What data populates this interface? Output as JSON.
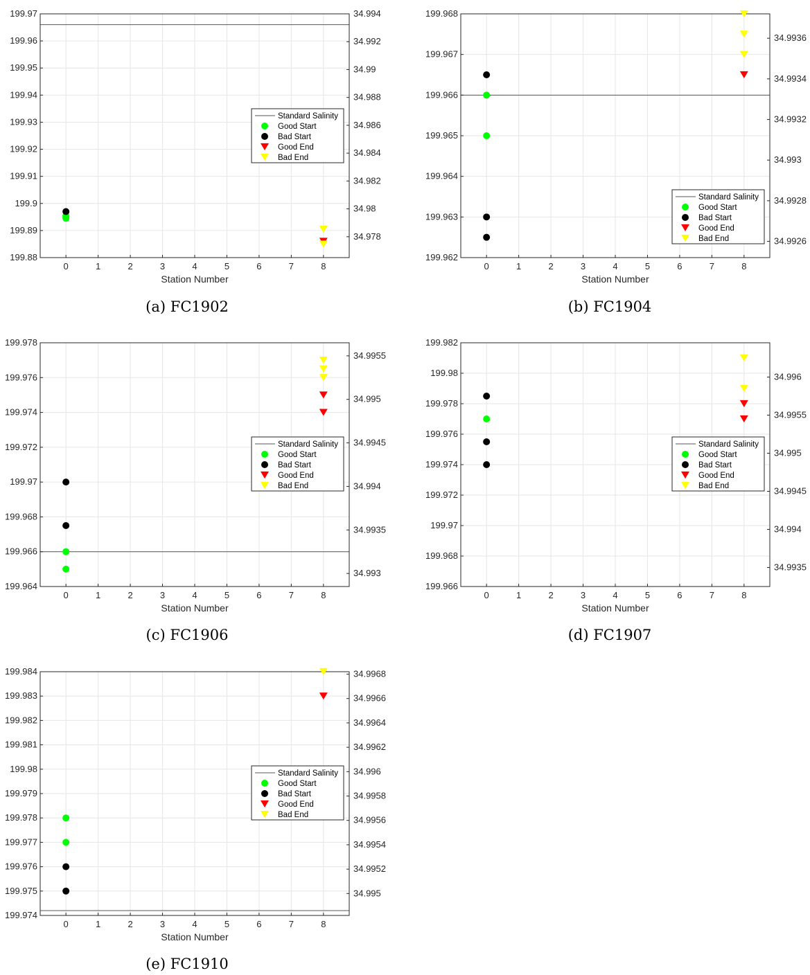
{
  "chart_data": [
    {
      "type": "scatter",
      "caption": "(a) FC1902",
      "xlabel": "Station Number",
      "xlim": [
        -0.8,
        8.8
      ],
      "xticks": [
        "0",
        "1",
        "2",
        "3",
        "4",
        "5",
        "6",
        "7",
        "8"
      ],
      "ylim": [
        199.88,
        199.97
      ],
      "yticks": [
        "199.88",
        "199.89",
        "199.9",
        "199.91",
        "199.92",
        "199.93",
        "199.94",
        "199.95",
        "199.96",
        "199.97"
      ],
      "y2lim": [
        34.9765,
        34.994
      ],
      "y2ticks": [
        "34.978",
        "34.98",
        "34.982",
        "34.984",
        "34.986",
        "34.988",
        "34.99",
        "34.992",
        "34.994"
      ],
      "grid": true,
      "legend_position": "right-middle",
      "standard_salinity": 199.966,
      "series": [
        {
          "name": "Good Start",
          "color": "#00ff00",
          "marker": "circle",
          "x": [
            0,
            0,
            0
          ],
          "y": [
            199.8945,
            199.895,
            199.8955
          ]
        },
        {
          "name": "Bad Start",
          "color": "#000000",
          "marker": "circle",
          "x": [
            0
          ],
          "y": [
            199.897
          ]
        },
        {
          "name": "Good End",
          "color": "#ff0000",
          "marker": "triangle-down",
          "x": [
            8
          ],
          "y": [
            199.886
          ]
        },
        {
          "name": "Bad End",
          "color": "#ffff00",
          "marker": "triangle-down",
          "x": [
            8,
            8
          ],
          "y": [
            199.8905,
            199.885
          ]
        }
      ],
      "legend": {
        "standard": "Standard Salinity",
        "good_start": "Good Start",
        "bad_start": "Bad Start",
        "good_end": "Good End",
        "bad_end": "Bad End"
      }
    },
    {
      "type": "scatter",
      "caption": "(b) FC1904",
      "xlabel": "Station Number",
      "xlim": [
        -0.8,
        8.8
      ],
      "xticks": [
        "0",
        "1",
        "2",
        "3",
        "4",
        "5",
        "6",
        "7",
        "8"
      ],
      "ylim": [
        199.962,
        199.968
      ],
      "yticks": [
        "199.962",
        "199.963",
        "199.964",
        "199.965",
        "199.966",
        "199.967",
        "199.968"
      ],
      "y2lim": [
        34.99252,
        34.99372
      ],
      "y2ticks": [
        "34.9926",
        "34.9928",
        "34.993",
        "34.9932",
        "34.9934",
        "34.9936"
      ],
      "grid": true,
      "legend_position": "bottom-right",
      "standard_salinity": 199.966,
      "series": [
        {
          "name": "Good Start",
          "color": "#00ff00",
          "marker": "circle",
          "x": [
            0,
            0
          ],
          "y": [
            199.966,
            199.965
          ]
        },
        {
          "name": "Bad Start",
          "color": "#000000",
          "marker": "circle",
          "x": [
            0,
            0,
            0
          ],
          "y": [
            199.9665,
            199.963,
            199.9625
          ]
        },
        {
          "name": "Good End",
          "color": "#ff0000",
          "marker": "triangle-down",
          "x": [
            8
          ],
          "y": [
            199.9665
          ]
        },
        {
          "name": "Bad End",
          "color": "#ffff00",
          "marker": "triangle-down",
          "x": [
            8,
            8,
            8
          ],
          "y": [
            199.968,
            199.9675,
            199.967
          ]
        }
      ],
      "legend": {
        "standard": "Standard Salinity",
        "good_start": "Good Start",
        "bad_start": "Bad Start",
        "good_end": "Good End",
        "bad_end": "Bad End"
      }
    },
    {
      "type": "scatter",
      "caption": "(c) FC1906",
      "xlabel": "Station Number",
      "xlim": [
        -0.8,
        8.8
      ],
      "xticks": [
        "0",
        "1",
        "2",
        "3",
        "4",
        "5",
        "6",
        "7",
        "8"
      ],
      "ylim": [
        199.964,
        199.978
      ],
      "yticks": [
        "199.964",
        "199.966",
        "199.968",
        "199.97",
        "199.972",
        "199.974",
        "199.976",
        "199.978"
      ],
      "y2lim": [
        34.99285,
        34.99565
      ],
      "y2ticks": [
        "34.993",
        "34.9935",
        "34.994",
        "34.9945",
        "34.995",
        "34.9955"
      ],
      "grid": true,
      "legend_position": "right-middle",
      "standard_salinity": 199.966,
      "series": [
        {
          "name": "Good Start",
          "color": "#00ff00",
          "marker": "circle",
          "x": [
            0,
            0
          ],
          "y": [
            199.966,
            199.965
          ]
        },
        {
          "name": "Bad Start",
          "color": "#000000",
          "marker": "circle",
          "x": [
            0,
            0
          ],
          "y": [
            199.97,
            199.9675
          ]
        },
        {
          "name": "Good End",
          "color": "#ff0000",
          "marker": "triangle-down",
          "x": [
            8,
            8
          ],
          "y": [
            199.975,
            199.974
          ]
        },
        {
          "name": "Bad End",
          "color": "#ffff00",
          "marker": "triangle-down",
          "x": [
            8,
            8,
            8
          ],
          "y": [
            199.977,
            199.9765,
            199.976
          ]
        }
      ],
      "legend": {
        "standard": "Standard Salinity",
        "good_start": "Good Start",
        "bad_start": "Bad Start",
        "good_end": "Good End",
        "bad_end": "Bad End"
      }
    },
    {
      "type": "scatter",
      "caption": "(d) FC1907",
      "xlabel": "Station Number",
      "xlim": [
        -0.8,
        8.8
      ],
      "xticks": [
        "0",
        "1",
        "2",
        "3",
        "4",
        "5",
        "6",
        "7",
        "8"
      ],
      "ylim": [
        199.966,
        199.982
      ],
      "yticks": [
        "199.966",
        "199.968",
        "199.97",
        "199.972",
        "199.974",
        "199.976",
        "199.978",
        "199.98",
        "199.982"
      ],
      "y2lim": [
        34.99325,
        34.99645
      ],
      "y2ticks": [
        "34.9935",
        "34.994",
        "34.9945",
        "34.995",
        "34.9955",
        "34.996"
      ],
      "grid": true,
      "legend_position": "right-middle",
      "series": [
        {
          "name": "Good Start",
          "color": "#00ff00",
          "marker": "circle",
          "x": [
            0
          ],
          "y": [
            199.977
          ]
        },
        {
          "name": "Bad Start",
          "color": "#000000",
          "marker": "circle",
          "x": [
            0,
            0,
            0
          ],
          "y": [
            199.9785,
            199.9755,
            199.974
          ]
        },
        {
          "name": "Good End",
          "color": "#ff0000",
          "marker": "triangle-down",
          "x": [
            8,
            8
          ],
          "y": [
            199.978,
            199.977
          ]
        },
        {
          "name": "Bad End",
          "color": "#ffff00",
          "marker": "triangle-down",
          "x": [
            8,
            8
          ],
          "y": [
            199.981,
            199.979
          ]
        }
      ],
      "legend": {
        "standard": "Standard Salinity",
        "good_start": "Good Start",
        "bad_start": "Bad Start",
        "good_end": "Good End",
        "bad_end": "Bad End"
      }
    },
    {
      "type": "scatter",
      "caption": "(e) FC1910",
      "xlabel": "Station Number",
      "xlim": [
        -0.8,
        8.8
      ],
      "xticks": [
        "0",
        "1",
        "2",
        "3",
        "4",
        "5",
        "6",
        "7",
        "8"
      ],
      "ylim": [
        199.974,
        199.984
      ],
      "yticks": [
        "199.974",
        "199.975",
        "199.976",
        "199.977",
        "199.978",
        "199.979",
        "199.98",
        "199.981",
        "199.982",
        "199.983",
        "199.984"
      ],
      "y2lim": [
        34.99482,
        34.99682
      ],
      "y2ticks": [
        "34.995",
        "34.9952",
        "34.9954",
        "34.9956",
        "34.9958",
        "34.996",
        "34.9962",
        "34.9964",
        "34.9966",
        "34.9968"
      ],
      "grid": true,
      "legend_position": "right-middle",
      "standard_salinity": 199.9742,
      "series": [
        {
          "name": "Good Start",
          "color": "#00ff00",
          "marker": "circle",
          "x": [
            0,
            0
          ],
          "y": [
            199.978,
            199.977
          ]
        },
        {
          "name": "Bad Start",
          "color": "#000000",
          "marker": "circle",
          "x": [
            0,
            0
          ],
          "y": [
            199.976,
            199.975
          ]
        },
        {
          "name": "Good End",
          "color": "#ff0000",
          "marker": "triangle-down",
          "x": [
            8
          ],
          "y": [
            199.983
          ]
        },
        {
          "name": "Bad End",
          "color": "#ffff00",
          "marker": "triangle-down",
          "x": [
            8
          ],
          "y": [
            199.984
          ]
        }
      ],
      "legend": {
        "standard": "Standard Salinity",
        "good_start": "Good Start",
        "bad_start": "Bad Start",
        "good_end": "Good End",
        "bad_end": "Bad End"
      }
    }
  ]
}
